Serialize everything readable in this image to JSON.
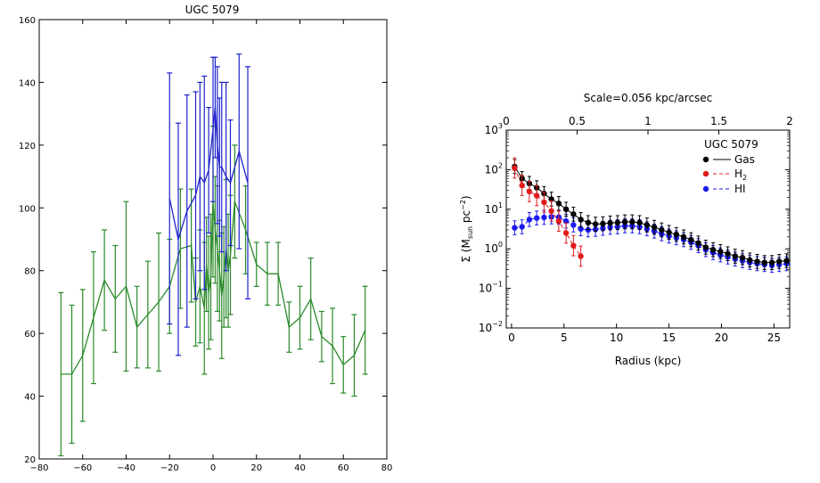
{
  "chart_data": [
    {
      "type": "line",
      "title": "UGC 5079",
      "xlabel": "",
      "ylabel": "",
      "xlim": [
        -80,
        80
      ],
      "ylim": [
        20,
        160
      ],
      "xticks": [
        -80,
        -60,
        -40,
        -20,
        0,
        20,
        40,
        60,
        80
      ],
      "yticks": [
        20,
        40,
        60,
        80,
        100,
        120,
        140,
        160
      ],
      "tick_labels_x": [
        "−80",
        "−60",
        "−40",
        "−20",
        "0",
        "20",
        "40",
        "60",
        "80"
      ],
      "tick_labels_y": [
        "20",
        "40",
        "60",
        "80",
        "100",
        "120",
        "140",
        "160"
      ],
      "grid": false,
      "series": [
        {
          "color": "#1f22cc",
          "errorbars": true,
          "x": [
            -20,
            -16,
            -12,
            -8,
            -6,
            -4,
            -2,
            0,
            1,
            2,
            3,
            4,
            6,
            8,
            12,
            16
          ],
          "y": [
            103,
            90,
            99,
            104,
            110,
            108,
            112,
            125,
            132,
            120,
            113,
            113,
            110,
            108,
            118,
            108
          ],
          "err": [
            40,
            37,
            37,
            33,
            30,
            34,
            20,
            23,
            16,
            25,
            22,
            27,
            30,
            20,
            31,
            37
          ]
        },
        {
          "color": "#2a8a2a",
          "errorbars": true,
          "x": [
            -70,
            -65,
            -60,
            -55,
            -50,
            -45,
            -40,
            -35,
            -30,
            -25,
            -20,
            -15,
            -10,
            -8,
            -6,
            -4,
            -3,
            -2,
            -1,
            0,
            1,
            2,
            3,
            4,
            5,
            6,
            7,
            8,
            10,
            15,
            20,
            25,
            30,
            35,
            40,
            45,
            50,
            55,
            60,
            65,
            70
          ],
          "y": [
            47,
            47,
            53,
            65,
            77,
            71,
            75,
            62,
            66,
            70,
            75,
            87,
            88,
            70,
            75,
            68,
            82,
            73,
            78,
            102,
            93,
            87,
            80,
            72,
            78,
            87,
            80,
            85,
            102,
            93,
            82,
            79,
            79,
            62,
            65,
            71,
            59,
            56,
            50,
            53,
            61
          ],
          "err": [
            26,
            22,
            21,
            21,
            16,
            17,
            27,
            13,
            17,
            22,
            15,
            19,
            18,
            14,
            18,
            21,
            15,
            18,
            20,
            24,
            17,
            20,
            16,
            20,
            16,
            22,
            18,
            19,
            18,
            14,
            7,
            10,
            10,
            8,
            10,
            13,
            8,
            12,
            9,
            13,
            14
          ]
        }
      ]
    },
    {
      "type": "scatter",
      "title": "",
      "top_axis_label": "Scale=0.056 kpc/arcsec",
      "top_ticks": [
        "0",
        "0.5",
        "1",
        "1.5",
        "2"
      ],
      "top_xlim": [
        0,
        2
      ],
      "xlabel": "Radius (kpc)",
      "ylabel_parts": [
        "Σ (M",
        "sun",
        " pc",
        "−2",
        ")"
      ],
      "xlim": [
        -0.5,
        26.5
      ],
      "ylim_log10": [
        -2,
        3
      ],
      "yscale": "log",
      "xticks": [
        0,
        5,
        10,
        15,
        20,
        25
      ],
      "yticks_log10": [
        -2,
        -1,
        0,
        1,
        2,
        3
      ],
      "ytick_mantissa": "10",
      "ytick_exponents": [
        "−2",
        "−1",
        "0",
        "1",
        "2",
        "3"
      ],
      "grid": false,
      "legend": {
        "title": "UGC 5079",
        "placement": "top-right",
        "entries": [
          {
            "name": "Gas",
            "sub": "",
            "color": "#000000",
            "dash": "solid"
          },
          {
            "name": "H",
            "sub": "2",
            "color": "#e01b1b",
            "dash": "dashed"
          },
          {
            "name": "HI",
            "sub": "",
            "color": "#1b1bf0",
            "dash": "dashed"
          }
        ]
      },
      "series": [
        {
          "name": "Gas",
          "color": "#000000",
          "x": [
            0.3,
            1.0,
            1.7,
            2.4,
            3.1,
            3.8,
            4.5,
            5.2,
            5.9,
            6.6,
            7.3,
            8.0,
            8.7,
            9.4,
            10.1,
            10.8,
            11.5,
            12.2,
            12.9,
            13.6,
            14.3,
            15.0,
            15.7,
            16.4,
            17.1,
            17.8,
            18.5,
            19.2,
            19.9,
            20.6,
            21.3,
            22.0,
            22.7,
            23.4,
            24.1,
            24.8,
            25.5,
            26.2
          ],
          "y": [
            120,
            60,
            45,
            35,
            25,
            18,
            14,
            10,
            7.5,
            5.5,
            4.6,
            4.2,
            4.3,
            4.5,
            4.6,
            4.8,
            4.8,
            4.6,
            4.0,
            3.5,
            3.0,
            2.6,
            2.3,
            2.0,
            1.7,
            1.4,
            1.1,
            0.95,
            0.85,
            0.75,
            0.65,
            0.6,
            0.52,
            0.48,
            0.45,
            0.45,
            0.48,
            0.5
          ],
          "err_factor": 1.5
        },
        {
          "name": "H2",
          "color": "#e01b1b",
          "x": [
            0.3,
            1.0,
            1.7,
            2.4,
            3.1,
            3.8,
            4.5,
            5.2,
            5.9,
            6.6
          ],
          "y": [
            110,
            40,
            28,
            22,
            15,
            9,
            5,
            2.5,
            1.2,
            0.65
          ],
          "err_factor": 1.8
        },
        {
          "name": "HI",
          "color": "#1b1bf0",
          "x": [
            0.3,
            1.0,
            1.7,
            2.4,
            3.1,
            3.8,
            4.5,
            5.2,
            5.9,
            6.6,
            7.3,
            8.0,
            8.7,
            9.4,
            10.1,
            10.8,
            11.5,
            12.2,
            12.9,
            13.6,
            14.3,
            15.0,
            15.7,
            16.4,
            17.1,
            17.8,
            18.5,
            19.2,
            19.9,
            20.6,
            21.3,
            22.0,
            22.7,
            23.4,
            24.1,
            24.8,
            25.5,
            26.2
          ],
          "y": [
            3.4,
            3.6,
            5.5,
            6.0,
            6.2,
            6.4,
            6.3,
            5.0,
            4.0,
            3.2,
            3.0,
            3.1,
            3.3,
            3.5,
            3.6,
            3.8,
            3.8,
            3.6,
            3.2,
            2.8,
            2.4,
            2.1,
            1.9,
            1.7,
            1.45,
            1.2,
            0.95,
            0.8,
            0.7,
            0.62,
            0.55,
            0.5,
            0.45,
            0.42,
            0.4,
            0.38,
            0.4,
            0.42
          ],
          "err_factor": 1.5
        }
      ]
    }
  ]
}
